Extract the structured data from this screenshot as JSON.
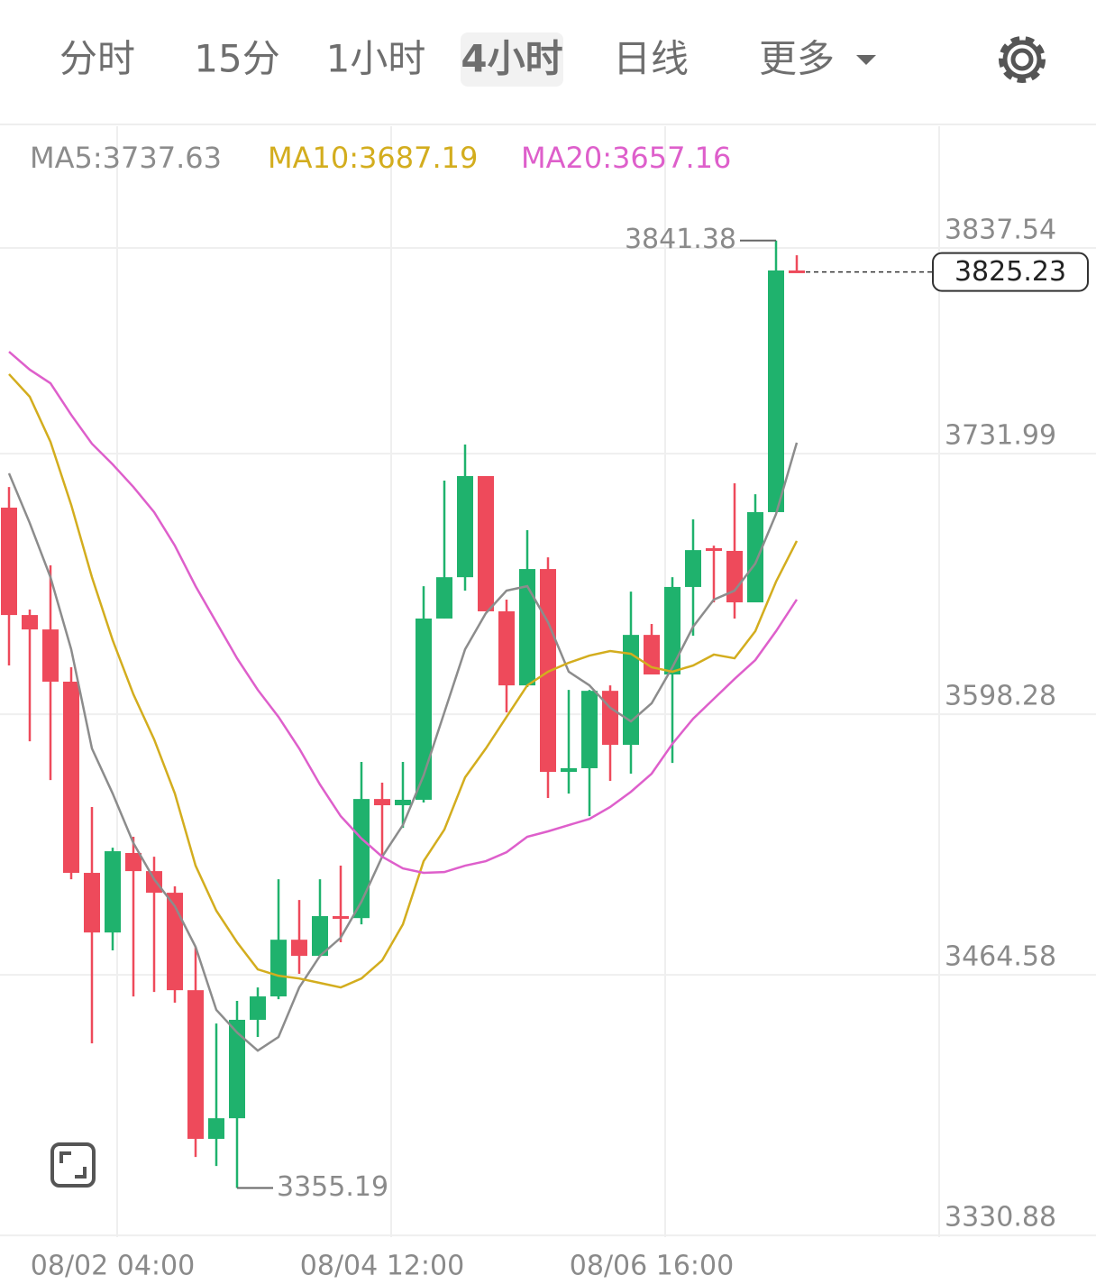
{
  "tabs": [
    "分时",
    "15分",
    "1小时",
    "4小时",
    "日线",
    "更多"
  ],
  "selected_tab": 3,
  "chart_data": {
    "type": "candlestick",
    "categories": [
      null,
      null,
      null,
      null,
      null,
      "08/02 04:00",
      null,
      null,
      null,
      null,
      null,
      null,
      null,
      null,
      null,
      null,
      null,
      null,
      "08/04 12:00",
      null,
      null,
      null,
      null,
      null,
      null,
      null,
      null,
      null,
      null,
      null,
      null,
      "08/06 16:00",
      null,
      null,
      null,
      null,
      null,
      null,
      null
    ],
    "open": [
      3704.3,
      3649.2,
      3641.8,
      3615.0,
      3516.9,
      3486.3,
      3527.1,
      3517.8,
      3506.7,
      3456.7,
      3380.4,
      3391.0,
      3441.5,
      3453.5,
      3482.6,
      3474.3,
      3494.7,
      3493.7,
      3554.8,
      3551.6,
      3554.4,
      3647.4,
      3668.6,
      3720.5,
      3651.1,
      3613.1,
      3672.8,
      3568.7,
      3570.6,
      3610.3,
      3582.6,
      3639.0,
      3618.7,
      3663.6,
      3683.5,
      3682.1,
      3655.7,
      3702.0,
      3826.0
    ],
    "high": [
      3714.9,
      3652.0,
      3674.7,
      3622.4,
      3550.7,
      3529.8,
      3535.4,
      3525.2,
      3510.0,
      3478.9,
      3439.6,
      3451.2,
      3458.1,
      3513.6,
      3503.0,
      3513.6,
      3520.6,
      3573.8,
      3563.2,
      3573.8,
      3664.0,
      3718.2,
      3736.7,
      3720.5,
      3657.1,
      3692.7,
      3678.8,
      3610.8,
      3610.8,
      3613.1,
      3661.2,
      3644.6,
      3668.6,
      3698.3,
      3684.8,
      3716.8,
      3711.2,
      3841.38,
      3833.8
    ],
    "low": [
      3623.3,
      3584.4,
      3564.5,
      3513.6,
      3429.4,
      3477.1,
      3453.5,
      3455.8,
      3450.3,
      3371.1,
      3366.5,
      3355.19,
      3432.7,
      3452.1,
      3465.1,
      3474.3,
      3481.3,
      3490.5,
      3526.1,
      3540.0,
      3553.0,
      3647.4,
      3661.7,
      3651.1,
      3599.2,
      3612.2,
      3555.3,
      3557.6,
      3546.0,
      3564.1,
      3567.8,
      3618.7,
      3573.3,
      3638.6,
      3655.7,
      3647.4,
      3655.7,
      3702.0,
      3825.0
    ],
    "close": [
      3649.2,
      3641.8,
      3615.0,
      3516.9,
      3486.3,
      3528.0,
      3517.8,
      3506.7,
      3456.7,
      3380.4,
      3391.0,
      3441.5,
      3453.5,
      3482.6,
      3474.3,
      3494.7,
      3493.7,
      3554.8,
      3551.6,
      3554.4,
      3647.4,
      3668.6,
      3720.5,
      3651.1,
      3613.1,
      3672.8,
      3568.7,
      3570.6,
      3610.3,
      3582.6,
      3639.0,
      3618.7,
      3663.6,
      3682.5,
      3682.1,
      3655.7,
      3702.0,
      3826.0,
      3825.23
    ],
    "up_color": "#1fb26d",
    "down_color": "#ee4a5b",
    "series": [
      {
        "name": "MA5:",
        "color": "#8c8c8c",
        "values": [
          3721.9,
          3696.4,
          3668.6,
          3631.6,
          3580.7,
          3557.6,
          3532.2,
          3513.6,
          3499.8,
          3478.9,
          3446.6,
          3435.0,
          3425.7,
          3432.7,
          3458.1,
          3474.3,
          3483.6,
          3502.1,
          3525.2,
          3541.4,
          3566.9,
          3599.2,
          3631.6,
          3650.1,
          3661.7,
          3664.0,
          3645.5,
          3620.1,
          3613.1,
          3601.6,
          3594.6,
          3603.9,
          3622.4,
          3643.2,
          3657.1,
          3661.7,
          3675.6,
          3701.0,
          3737.63
        ]
      },
      {
        "name": "MA10:",
        "color": "#d3ad1e",
        "values": [
          3772.8,
          3761.2,
          3738.1,
          3705.7,
          3668.6,
          3636.3,
          3608.5,
          3585.4,
          3557.6,
          3520.6,
          3497.5,
          3481.3,
          3467.4,
          3464.1,
          3462.7,
          3460.4,
          3458.1,
          3462.7,
          3472.0,
          3490.5,
          3522.9,
          3539.1,
          3565.9,
          3580.7,
          3596.9,
          3613.1,
          3620.1,
          3624.7,
          3628.4,
          3630.7,
          3629.3,
          3622.4,
          3620.1,
          3623.3,
          3628.9,
          3627.0,
          3640.9,
          3666.3,
          3687.19
        ]
      },
      {
        "name": "MA20:",
        "color": "#de5fcb",
        "values": [
          3784.3,
          3775.1,
          3768.1,
          3751.9,
          3737.1,
          3726.5,
          3714.9,
          3702.0,
          3684.8,
          3664.0,
          3645.5,
          3627.0,
          3610.8,
          3596.9,
          3580.7,
          3562.2,
          3546.0,
          3534.5,
          3525.2,
          3519.2,
          3516.9,
          3517.3,
          3520.6,
          3522.9,
          3527.5,
          3535.4,
          3538.2,
          3541.4,
          3544.6,
          3550.7,
          3558.5,
          3567.8,
          3583.1,
          3596.0,
          3606.2,
          3616.4,
          3626.1,
          3640.9,
          3657.16
        ]
      }
    ],
    "ylim": [
      3330,
      3900
    ],
    "yticks": [
      3837.54,
      3731.99,
      3598.28,
      3464.58,
      3330.88
    ],
    "grid": true
  }
}
